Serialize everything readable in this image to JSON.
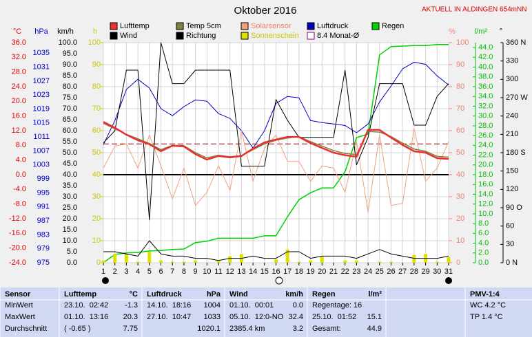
{
  "chart_data": {
    "type": "line",
    "title": "Oktober 2016",
    "station": "AKTUELL IN ALDINGEN 654mNN",
    "x": [
      1,
      2,
      3,
      4,
      5,
      6,
      7,
      8,
      9,
      10,
      11,
      12,
      13,
      14,
      15,
      16,
      17,
      18,
      19,
      20,
      21,
      22,
      23,
      24,
      25,
      26,
      27,
      28,
      29,
      30,
      31
    ],
    "xlim": [
      1,
      31
    ],
    "xticks": [
      1,
      2,
      3,
      4,
      5,
      6,
      7,
      8,
      9,
      10,
      11,
      12,
      13,
      14,
      15,
      16,
      17,
      18,
      19,
      20,
      21,
      22,
      23,
      24,
      25,
      26,
      27,
      28,
      29,
      30,
      31
    ],
    "grid_axis": "h",
    "axes": [
      {
        "label": "°C",
        "color": "#e00000",
        "lim": [
          -24,
          36
        ],
        "ticks": [
          {
            "value": -24,
            "label": "-24.0"
          },
          {
            "value": -20,
            "label": "-20.0"
          },
          {
            "value": -16,
            "label": "-16.0"
          },
          {
            "value": -12,
            "label": "-12.0"
          },
          {
            "value": -8,
            "label": "-8.0"
          },
          {
            "value": -4,
            "label": "-4.0"
          },
          {
            "value": 0,
            "label": "0.0"
          },
          {
            "value": 4,
            "label": "4.0"
          },
          {
            "value": 8,
            "label": "8.0"
          },
          {
            "value": 12,
            "label": "12.0"
          },
          {
            "value": 16,
            "label": "16.0"
          },
          {
            "value": 20,
            "label": "20.0"
          },
          {
            "value": 24,
            "label": "24.0"
          },
          {
            "value": 28,
            "label": "28.0"
          },
          {
            "value": 32,
            "label": "32.0"
          },
          {
            "value": 36,
            "label": "36.0"
          }
        ]
      },
      {
        "label": "hPa",
        "color": "#0000d0",
        "lim": [
          975,
          1038
        ],
        "ticks": [
          975,
          979,
          983,
          987,
          991,
          995,
          999,
          1003,
          1007,
          1011,
          1015,
          1019,
          1023,
          1027,
          1031,
          1035
        ]
      },
      {
        "label": "km/h",
        "color": "#000000",
        "lim": [
          0,
          100
        ],
        "ticks": [
          {
            "value": 0,
            "label": "0.0"
          },
          {
            "value": 5,
            "label": "5.0"
          },
          {
            "value": 10,
            "label": "10.0"
          },
          {
            "value": 15,
            "label": "15.0"
          },
          {
            "value": 20,
            "label": "20.0"
          },
          {
            "value": 25,
            "label": "25.0"
          },
          {
            "value": 30,
            "label": "30.0"
          },
          {
            "value": 35,
            "label": "35.0"
          },
          {
            "value": 40,
            "label": "40.0"
          },
          {
            "value": 45,
            "label": "45.0"
          },
          {
            "value": 50,
            "label": "50.0"
          },
          {
            "value": 55,
            "label": "55.0"
          },
          {
            "value": 60,
            "label": "60.0"
          },
          {
            "value": 65,
            "label": "65.0"
          },
          {
            "value": 70,
            "label": "70.0"
          },
          {
            "value": 75,
            "label": "75.0"
          },
          {
            "value": 80,
            "label": "80.0"
          },
          {
            "value": 85,
            "label": "85.0"
          },
          {
            "value": 90,
            "label": "90.0"
          },
          {
            "value": 95,
            "label": "95.0"
          },
          {
            "value": 100,
            "label": "100.0"
          }
        ]
      },
      {
        "label": "h",
        "color": "#c8c800",
        "lim": [
          0,
          100
        ],
        "ticks": [
          0,
          10,
          20,
          30,
          40,
          50,
          60,
          70,
          80,
          90,
          100
        ]
      },
      {
        "label": "%",
        "color": "#f08070",
        "lim": [
          0,
          100
        ],
        "ticks": [
          0,
          10,
          20,
          30,
          40,
          50,
          60,
          70,
          80,
          90,
          100
        ]
      },
      {
        "label": "l/m²",
        "color": "#00c000",
        "lim": [
          0,
          45
        ],
        "ticks": [
          {
            "value": 0,
            "label": "0.0"
          },
          {
            "value": 2,
            "label": "2.0"
          },
          {
            "value": 4,
            "label": "4.0"
          },
          {
            "value": 6,
            "label": "6.0"
          },
          {
            "value": 8,
            "label": "8.0"
          },
          {
            "value": 10,
            "label": "10.0"
          },
          {
            "value": 12,
            "label": "12.0"
          },
          {
            "value": 14,
            "label": "14.0"
          },
          {
            "value": 16,
            "label": "16.0"
          },
          {
            "value": 18,
            "label": "18.0"
          },
          {
            "value": 20,
            "label": "20.0"
          },
          {
            "value": 22,
            "label": "22.0"
          },
          {
            "value": 24,
            "label": "24.0"
          },
          {
            "value": 26,
            "label": "26.0"
          },
          {
            "value": 28,
            "label": "28.0"
          },
          {
            "value": 30,
            "label": "30.0"
          },
          {
            "value": 32,
            "label": "32.0"
          },
          {
            "value": 34,
            "label": "34.0"
          },
          {
            "value": 36,
            "label": "36.0"
          },
          {
            "value": 38,
            "label": "38.0"
          },
          {
            "value": 40,
            "label": "40.0"
          },
          {
            "value": 42,
            "label": "42.0"
          },
          {
            "value": 44,
            "label": "44.0"
          }
        ]
      },
      {
        "label": "°",
        "color": "#000000",
        "lim": [
          0,
          360
        ],
        "ticks": [
          {
            "value": 0,
            "label": "0 N"
          },
          30,
          60,
          {
            "value": 90,
            "label": "90 O"
          },
          120,
          150,
          {
            "value": 180,
            "label": "180 S"
          },
          210,
          240,
          {
            "value": 270,
            "label": "270 W"
          },
          300,
          330,
          {
            "value": 360,
            "label": "360 N"
          }
        ]
      }
    ],
    "series": [
      {
        "name": "Lufttemp",
        "color": "#e83030",
        "width": 2.5,
        "axis": "°C",
        "values": [
          14.4,
          12.8,
          10.9,
          9.4,
          8.3,
          6.4,
          7.9,
          7.7,
          5.6,
          4.1,
          5.1,
          4.7,
          5.1,
          7.1,
          8.8,
          9.6,
          10.3,
          10.3,
          8.6,
          7.3,
          6.0,
          5.3,
          4.9,
          12.2,
          12.2,
          10.1,
          8.1,
          6.4,
          6.0,
          4.5,
          4.3
        ]
      },
      {
        "name": "Wind",
        "color": "#000000",
        "width": 1,
        "axis": "km/h",
        "values": [
          5,
          5,
          4,
          3,
          10,
          4,
          3,
          3,
          2,
          2,
          1,
          2,
          2,
          3,
          2,
          2,
          5,
          5,
          2,
          3,
          3,
          3,
          2,
          4,
          6,
          4,
          3,
          2,
          2,
          2,
          3
        ]
      },
      {
        "name": "Temp 5cm",
        "color": "#808040",
        "width": 1.5,
        "axis": "°C",
        "values": [
          14.0,
          12.5,
          11.0,
          9.8,
          8.5,
          6.8,
          8.0,
          7.9,
          6.0,
          4.6,
          5.3,
          4.9,
          5.2,
          6.8,
          8.4,
          9.4,
          10.0,
          10.4,
          9.0,
          7.8,
          6.6,
          5.8,
          5.5,
          11.8,
          11.6,
          10.4,
          8.6,
          7.0,
          6.4,
          5.0,
          4.8
        ]
      },
      {
        "name": "Richtung",
        "color": "#000000",
        "width": 1,
        "axis": "°",
        "values": [
          196,
          216,
          315,
          315,
          70,
          360,
          293,
          293,
          315,
          315,
          315,
          315,
          158,
          158,
          158,
          267,
          233,
          205,
          205,
          205,
          205,
          315,
          160,
          205,
          293,
          293,
          293,
          225,
          225,
          272,
          293
        ]
      },
      {
        "name": "Solarsensor",
        "color": "#f0a080",
        "width": 1,
        "axis": "%",
        "label_color": "#f08060",
        "values": [
          43,
          53,
          54,
          43,
          58,
          44,
          29,
          43,
          26,
          32,
          44,
          33,
          60,
          37,
          52,
          58,
          46,
          46,
          37,
          44,
          43,
          32,
          55,
          23,
          58,
          26,
          27,
          61,
          37,
          43,
          55
        ]
      },
      {
        "name": "Sonnenschein",
        "color": "#e0e000",
        "kind": "bar",
        "axis": "h",
        "label_color": "#c8c800",
        "values": [
          1,
          4,
          4,
          0.5,
          5,
          1,
          0.5,
          0.5,
          1,
          0,
          1,
          3,
          4,
          0,
          0,
          1.5,
          6,
          0.5,
          1,
          3,
          0,
          1,
          1,
          0,
          0.5,
          0.5,
          0,
          3.5,
          4,
          0.5,
          2.5
        ]
      },
      {
        "name": "Luftdruck",
        "color": "#0000c0",
        "width": 1,
        "axis": "hPa",
        "values": [
          1008.8,
          1015.7,
          1024.6,
          1027.5,
          1025.0,
          1019.1,
          1017.1,
          1019.7,
          1021.6,
          1021.2,
          1017.7,
          1016.3,
          1012.8,
          1007.8,
          1012.8,
          1020.6,
          1022.6,
          1022.2,
          1015.7,
          1015.1,
          1014.7,
          1014.3,
          1012.2,
          1014.7,
          1021.0,
          1025.6,
          1030.5,
          1032.4,
          1031.8,
          1028.5,
          1025.9
        ]
      },
      {
        "name": "Regen",
        "color": "#00d000",
        "width": 1.5,
        "axis": "l/m²",
        "values": [
          0,
          1.7,
          2.0,
          2.1,
          2.4,
          2.5,
          2.7,
          2.8,
          4.1,
          4.4,
          5.0,
          5.0,
          5.0,
          5.0,
          5.5,
          5.5,
          9.4,
          12.9,
          14.3,
          15.3,
          15.3,
          18.6,
          25.6,
          26.3,
          42.5,
          44.2,
          44.3,
          44.4,
          44.4,
          44.6,
          44.6
        ]
      }
    ],
    "reference_lines": [
      {
        "value": 0,
        "axis": "°C",
        "color": "#000000"
      },
      {
        "value": 8.4,
        "label": "8.4 Monat-Ø",
        "axis": "°C",
        "color": "#800000",
        "dashed": true
      }
    ]
  },
  "table": {
    "header": [
      {
        "left": "Sensor"
      },
      {
        "left": "Lufttemp",
        "right": "°C"
      },
      {
        "left": "Luftdruck",
        "right": "hPa"
      },
      {
        "left": "Wind",
        "right": "km/h"
      },
      {
        "left": "Regen",
        "right": "l/m²"
      },
      {},
      {
        "left": "PMV-1:4"
      }
    ],
    "rows": [
      [
        {
          "left": "MinWert"
        },
        {
          "left": "23.10.  02:42",
          "right": "-1.3"
        },
        {
          "left": "14.10.  18:16",
          "right": "1004"
        },
        {
          "left": "01.10.  00:01",
          "right": "0.0"
        },
        {
          "left": "Regentage: 16"
        },
        {},
        {
          "left": "WC 4.2 °C"
        }
      ],
      [
        {
          "left": "MaxWert"
        },
        {
          "left": "01.10.  13:16",
          "right": "20.3"
        },
        {
          "left": "27.10.  10:47",
          "right": "1033"
        },
        {
          "left": "05.10.  12:0-NO",
          "right": "32.4"
        },
        {
          "left": "25.10.  01:52",
          "right": "15.1"
        },
        {},
        {
          "left": "TP 1.4 °C"
        }
      ],
      [
        {
          "left": "Durchschnitt"
        },
        {
          "left": "( -0.65 )",
          "right": "7.75"
        },
        {
          "right": "1020.1"
        },
        {
          "left": "2385.4 km",
          "right": "3.2"
        },
        {
          "left": "Gesamt:",
          "right": "44.9"
        },
        {},
        {}
      ]
    ]
  }
}
